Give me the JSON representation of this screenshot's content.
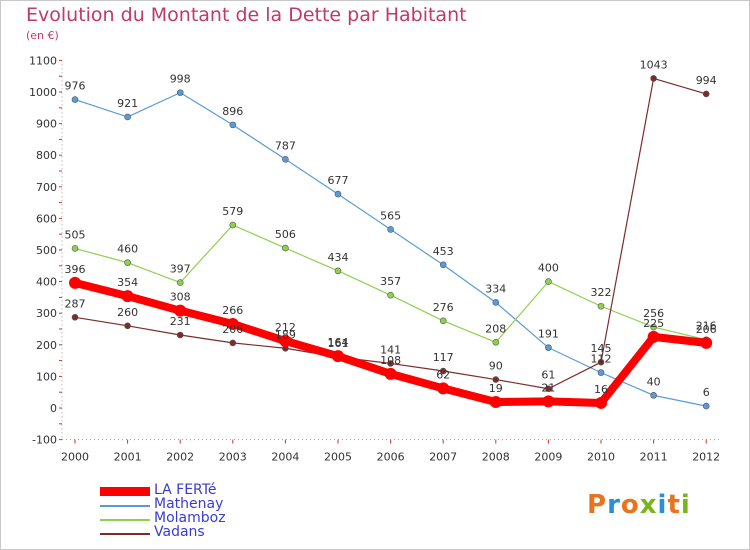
{
  "header": {
    "title": "Evolution du Montant de la Dette par Habitant",
    "unit": "(en €)"
  },
  "logo": {
    "text": "Proxiti",
    "colors": [
      "#e8741e",
      "#2a8fd6",
      "#e8741e",
      "#7ab51d",
      "#2a8fd6",
      "#e8741e",
      "#7ab51d"
    ]
  },
  "chart_data": {
    "type": "line",
    "title": "Evolution du Montant de la Dette par Habitant",
    "ylabel": "(en €)",
    "xlabel": "",
    "x": [
      "2000",
      "2001",
      "2002",
      "2003",
      "2004",
      "2005",
      "2006",
      "2007",
      "2008",
      "2009",
      "2010",
      "2011",
      "2012"
    ],
    "yticks": [
      -100,
      0,
      100,
      200,
      300,
      400,
      500,
      600,
      700,
      800,
      900,
      1000,
      1100
    ],
    "ylim": [
      -100,
      1100
    ],
    "grid": false,
    "legend": "bottom-left",
    "series": [
      {
        "name": "LA FERTé",
        "color": "#ff0000",
        "values": [
          396,
          354,
          308,
          266,
          212,
          164,
          108,
          62,
          19,
          21,
          16,
          225,
          206
        ],
        "labels": [
          "396",
          "354",
          "308",
          "266",
          "212",
          "164",
          "108",
          "62",
          "19",
          "21",
          "16",
          "225",
          "206"
        ]
      },
      {
        "name": "Mathenay",
        "color": "#5b9bd5",
        "values": [
          976,
          921,
          998,
          896,
          787,
          677,
          565,
          453,
          334,
          191,
          112,
          40,
          6
        ],
        "labels": [
          "976",
          "921",
          "998",
          "896",
          "787",
          "677",
          "565",
          "453",
          "334",
          "191",
          "112",
          "40",
          "6"
        ]
      },
      {
        "name": "Molamboz",
        "color": "#8fd14f",
        "values": [
          505,
          460,
          397,
          579,
          506,
          434,
          357,
          276,
          208,
          400,
          322,
          256,
          216
        ],
        "labels": [
          "505",
          "460",
          "397",
          "579",
          "506",
          "434",
          "357",
          "276",
          "208",
          "400",
          "322",
          "256",
          "216"
        ]
      },
      {
        "name": "Vadans",
        "color": "#7b2d2d",
        "values": [
          287,
          260,
          231,
          206,
          189,
          161,
          141,
          117,
          90,
          61,
          145,
          1043,
          994
        ],
        "labels": [
          "287",
          "260",
          "231",
          "206",
          "189",
          "161",
          "141",
          "117",
          "90",
          "61",
          "145",
          "1043",
          "994"
        ]
      }
    ]
  }
}
